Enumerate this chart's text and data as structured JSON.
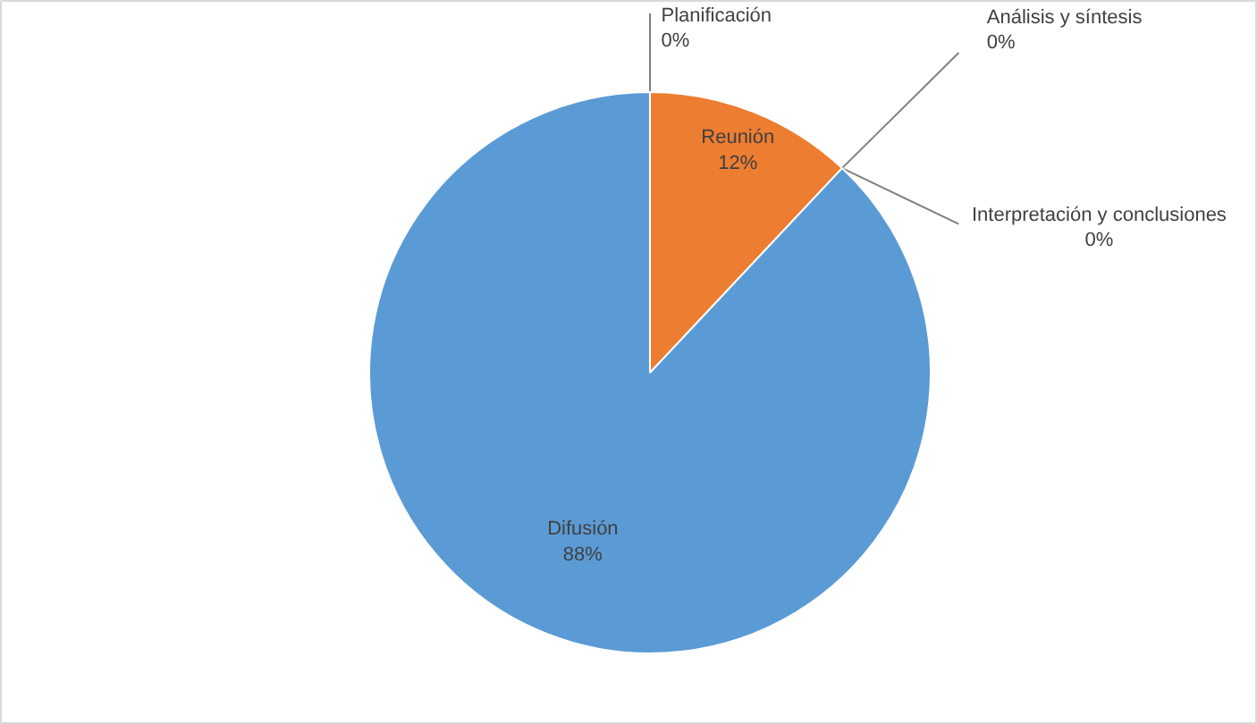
{
  "chart_data": {
    "type": "pie",
    "categories": [
      "Planificación",
      "Reunión",
      "Análisis y síntesis",
      "Interpretación y conclusiones",
      "Difusión"
    ],
    "values": [
      0,
      12,
      0,
      0,
      88
    ],
    "colors": [
      "#5b9bd5",
      "#ed7d31",
      "#a5a5a5",
      "#ffc000",
      "#5b9bd5"
    ],
    "value_labels": [
      "0%",
      "12%",
      "0%",
      "0%",
      "88%"
    ]
  }
}
